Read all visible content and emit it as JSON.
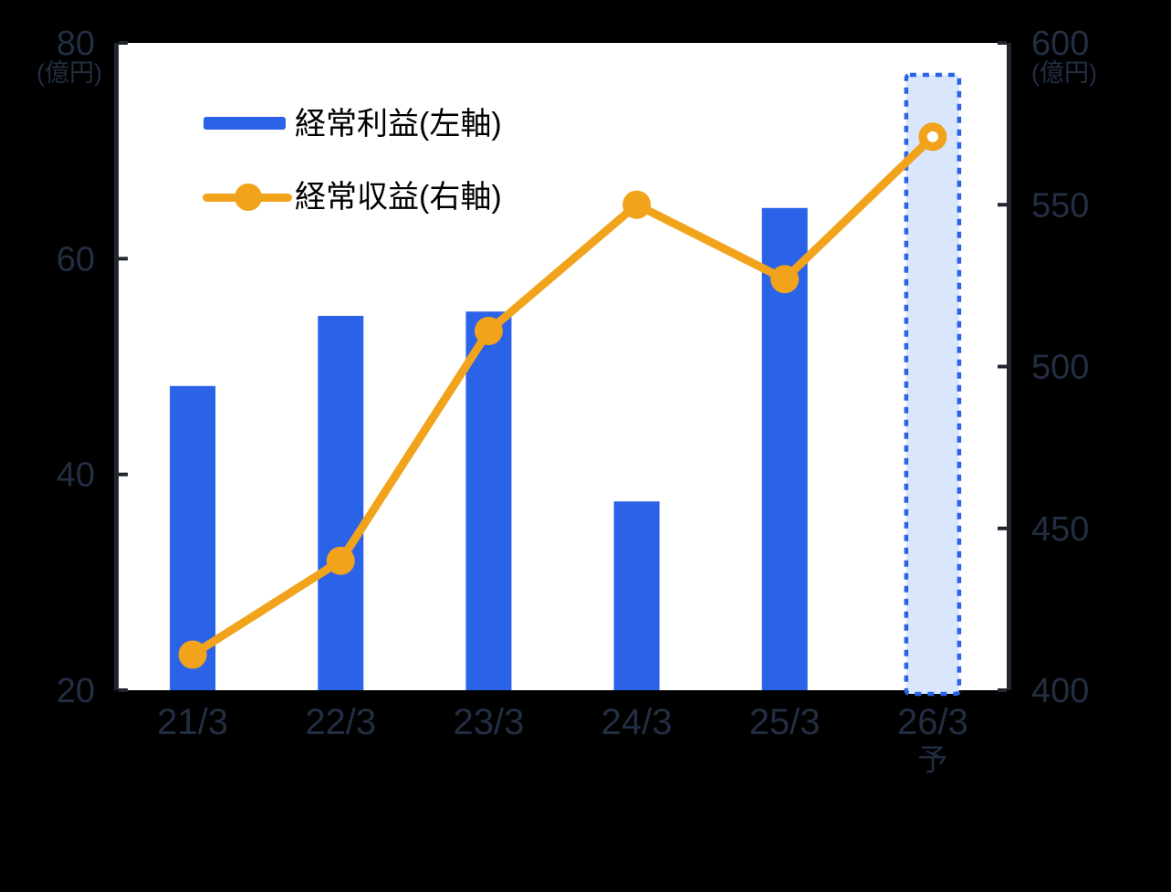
{
  "colors": {
    "background": "#000000",
    "bar_blue": "#2B63E8",
    "line_orange": "#F2A31C",
    "text_navy": "#222E42",
    "spine_dark": "#21252E",
    "plot_white": "#FFFFFF",
    "forecast_fill": "#D9E6FB",
    "forecast_border": "#2B63E8"
  },
  "legend": {
    "items": [
      {
        "label": "経常利益(左軸)",
        "marker": "bar"
      },
      {
        "label": "経常収益(右軸)",
        "marker": "line-dot"
      }
    ]
  },
  "chart_data": {
    "type": "combo-bar-line",
    "categories": [
      "21/3",
      "22/3",
      "23/3",
      "24/3",
      "25/3",
      "26/3"
    ],
    "forecast_category_index": 5,
    "forecast_sublabel": "予",
    "series": [
      {
        "name": "経常利益(左軸)",
        "type": "bar",
        "axis": "left",
        "values": [
          48.2,
          54.7,
          55.1,
          37.5,
          64.7,
          null
        ]
      },
      {
        "name": "経常収益(右軸)",
        "type": "line",
        "axis": "right",
        "values": [
          411,
          440,
          511,
          550,
          527,
          571
        ],
        "hollow_marker_index": 5
      }
    ],
    "left_axis": {
      "unit": "(億円)",
      "min": 20,
      "max": 80,
      "ticks": [
        80,
        60,
        40,
        20
      ]
    },
    "right_axis": {
      "unit": "(億円)",
      "min": 400,
      "max": 600,
      "ticks": [
        600,
        550,
        500,
        450,
        400
      ]
    },
    "grid": false,
    "legend_position": "top-left-inside",
    "highlight": {
      "category": "26/3",
      "style": "dashed-box",
      "meaning": "forecast"
    }
  }
}
